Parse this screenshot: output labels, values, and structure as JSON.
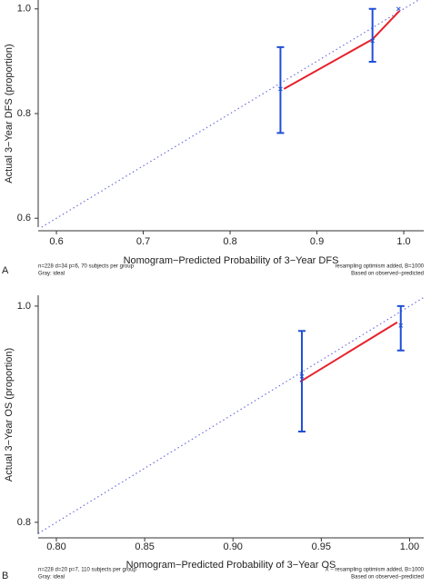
{
  "chart_data": [
    {
      "type": "calibration",
      "panel": "A",
      "x_label": "Nomogram−Predicted Probability of 3−Year DFS",
      "y_label": "Actual 3−Year DFS (proportion)",
      "note_left": [
        "n=228 d=34 p=6, 70 subjects per group",
        "Gray: ideal"
      ],
      "note_right": [
        "resampling optimism added, B=1000",
        "Based on observed−predicted"
      ],
      "xlim": [
        0.579,
        1.023
      ],
      "ylim": [
        0.583,
        1.017
      ],
      "xticks": [
        0.6,
        0.7,
        0.8,
        0.9,
        {
          "value": 1,
          "label": "1.0"
        }
      ],
      "yticks": [
        0.6,
        0.8,
        {
          "value": 1,
          "label": "1.0"
        }
      ],
      "ideal_color": "#6f6fe0",
      "point_color": "#1f4fd8",
      "corrected_color": "#e8202a",
      "points": {
        "x": [
          0.858,
          0.964,
          0.994
        ],
        "y": [
          0.847,
          0.939,
          1.0
        ],
        "lower": [
          0.763,
          0.899,
          null
        ],
        "upper": [
          0.927,
          1.0,
          null
        ]
      },
      "corrected": {
        "x": [
          0.862,
          0.964,
          0.995
        ],
        "y": [
          0.847,
          0.942,
          0.996
        ]
      }
    },
    {
      "type": "calibration",
      "panel": "B",
      "x_label": "Nomogram−Predicted Probability of 3−Year OS",
      "y_label": "Actual 3−Year OS (proportion)",
      "note_left": [
        "n=228 d=20 p=7, 110 subjects per group",
        "Gray: ideal"
      ],
      "note_right": [
        "X − resampling optimism added, B=1000",
        "Based on observed−predicted"
      ],
      "xlim": [
        0.7897,
        1.008
      ],
      "ylim": [
        0.789,
        1.01
      ],
      "xticks": [
        {
          "value": 0.8,
          "label": "0.80"
        },
        0.85,
        {
          "value": 0.9,
          "label": "0.90"
        },
        0.95,
        {
          "value": 1,
          "label": "1.00"
        }
      ],
      "yticks": [
        0.8,
        {
          "value": 1,
          "label": "1.0"
        }
      ],
      "ideal_color": "#6f6fe0",
      "point_color": "#1f4fd8",
      "corrected_color": "#e8202a",
      "points": {
        "x": [
          0.939,
          0.995
        ],
        "y": [
          0.935,
          0.982
        ],
        "lower": [
          0.884,
          0.959
        ],
        "upper": [
          0.977,
          1.0
        ]
      },
      "corrected": {
        "x": [
          0.938,
          0.993
        ],
        "y": [
          0.93,
          0.985
        ]
      }
    }
  ]
}
